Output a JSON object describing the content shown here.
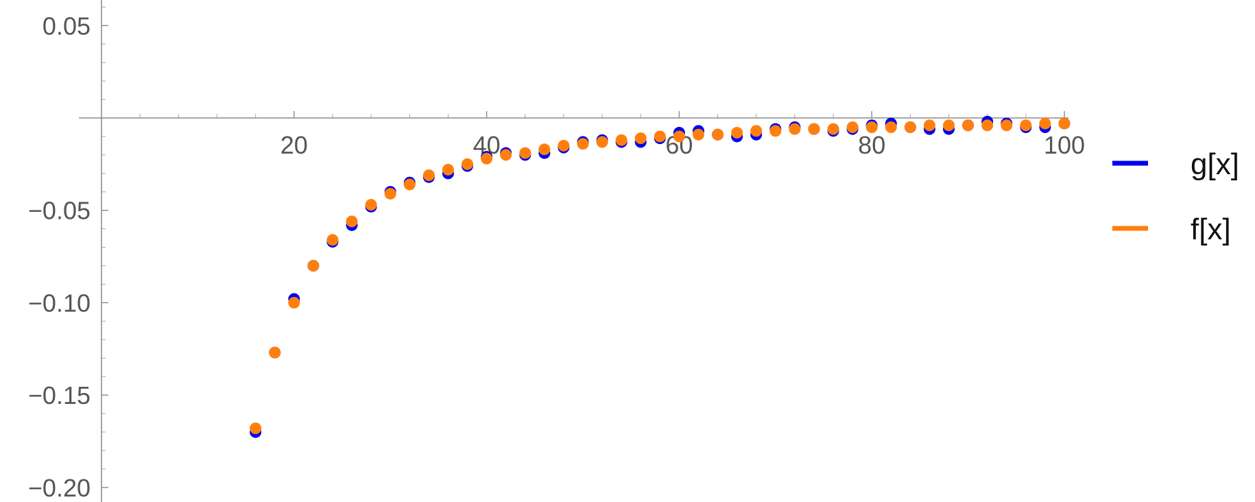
{
  "chart_data": {
    "type": "scatter",
    "title": "",
    "xlabel": "",
    "ylabel": "",
    "xlim": [
      0,
      102
    ],
    "ylim": [
      -0.205,
      0.063
    ],
    "grid": false,
    "legend_position": "right",
    "x_ticks": [
      20,
      40,
      60,
      80,
      100
    ],
    "x_tick_labels": [
      "20",
      "40",
      "60",
      "80",
      "100"
    ],
    "y_ticks": [
      0.05,
      -0.05,
      -0.1,
      -0.15,
      -0.2
    ],
    "y_tick_labels": [
      "0.05",
      "−0.05",
      "−0.10",
      "−0.15",
      "−0.20"
    ],
    "x": [
      16,
      18,
      20,
      22,
      24,
      26,
      28,
      30,
      32,
      34,
      36,
      38,
      40,
      42,
      44,
      46,
      48,
      50,
      52,
      54,
      56,
      58,
      60,
      62,
      64,
      66,
      68,
      70,
      72,
      74,
      76,
      78,
      80,
      82,
      84,
      86,
      88,
      90,
      92,
      94,
      96,
      98,
      100
    ],
    "series": [
      {
        "name": "g[x]",
        "color": "#0000ee",
        "values": [
          -0.17,
          -0.127,
          -0.098,
          -0.08,
          -0.067,
          -0.058,
          -0.048,
          -0.04,
          -0.035,
          -0.032,
          -0.03,
          -0.026,
          -0.021,
          -0.019,
          -0.02,
          -0.019,
          -0.016,
          -0.013,
          -0.012,
          -0.013,
          -0.013,
          -0.011,
          -0.008,
          -0.007,
          -0.009,
          -0.01,
          -0.009,
          -0.006,
          -0.005,
          -0.006,
          -0.007,
          -0.006,
          -0.004,
          -0.003,
          -0.005,
          -0.006,
          -0.006,
          -0.004,
          -0.002,
          -0.003,
          -0.005,
          -0.005,
          -0.003
        ]
      },
      {
        "name": "f[x]",
        "color": "#ff7f0e",
        "values": [
          -0.168,
          -0.127,
          -0.1,
          -0.08,
          -0.066,
          -0.056,
          -0.047,
          -0.041,
          -0.036,
          -0.031,
          -0.028,
          -0.025,
          -0.022,
          -0.02,
          -0.019,
          -0.017,
          -0.015,
          -0.014,
          -0.013,
          -0.012,
          -0.011,
          -0.01,
          -0.01,
          -0.009,
          -0.009,
          -0.008,
          -0.007,
          -0.007,
          -0.006,
          -0.006,
          -0.006,
          -0.005,
          -0.005,
          -0.005,
          -0.005,
          -0.004,
          -0.004,
          -0.004,
          -0.004,
          -0.004,
          -0.004,
          -0.003,
          -0.003
        ]
      }
    ]
  }
}
